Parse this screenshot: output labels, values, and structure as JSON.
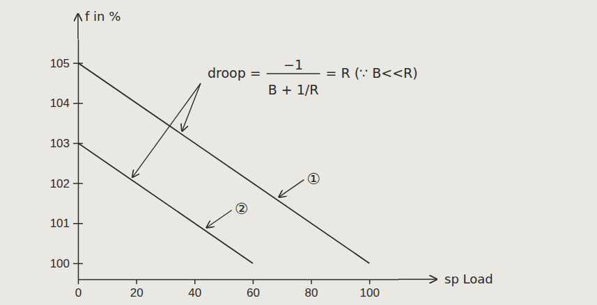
{
  "chart_data": {
    "type": "line",
    "y_label": "f in %",
    "x_label": "sp Load",
    "xlim": [
      0,
      110
    ],
    "ylim": [
      99.6,
      105.6
    ],
    "xticks": [
      0,
      20,
      40,
      60,
      80,
      100
    ],
    "yticks": [
      100,
      101,
      102,
      103,
      104,
      105
    ],
    "grid": false,
    "series": [
      {
        "name": "①",
        "color": "#2b2b2b",
        "x": [
          0,
          100
        ],
        "values": [
          105,
          100
        ]
      },
      {
        "name": "②",
        "color": "#2b2b2b",
        "x": [
          0,
          60
        ],
        "values": [
          103,
          100
        ]
      }
    ],
    "annotation": {
      "left": "droop =",
      "numerator": "−1",
      "denominator": "B + 1/R",
      "right": "= R (∵ B<<R)"
    }
  }
}
